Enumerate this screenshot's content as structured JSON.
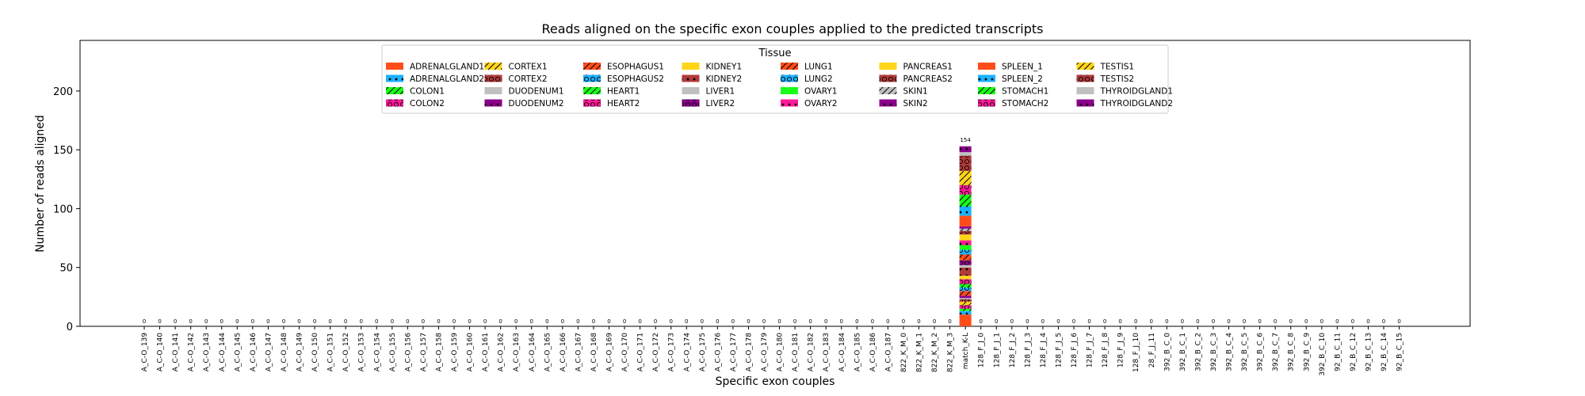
{
  "chart_data": {
    "type": "bar",
    "stacked": true,
    "title": "Reads aligned on the specific exon couples applied to the predicted transcripts",
    "xlabel": "Specific exon couples",
    "ylabel": "Number of reads aligned",
    "ylim": [
      0,
      243
    ],
    "yticks": [
      0,
      50,
      100,
      150,
      200
    ],
    "grid": false,
    "legend": {
      "title": "Tissue",
      "placement": "top-center",
      "columns": 9,
      "entries": [
        {
          "name": "ADRENALGLAND1",
          "color": "#ff4d1a",
          "hatch": "none"
        },
        {
          "name": "ADRENALGLAND2",
          "color": "#1ab2ff",
          "hatch": "dot"
        },
        {
          "name": "COLON1",
          "color": "#1aff1a",
          "hatch": "slash"
        },
        {
          "name": "COLON2",
          "color": "#ff1a99",
          "hatch": "circle"
        },
        {
          "name": "CORTEX1",
          "color": "#ffd51a",
          "hatch": "slash"
        },
        {
          "name": "CORTEX2",
          "color": "#b03a3a",
          "hatch": "circle"
        },
        {
          "name": "DUODENUM1",
          "color": "#c0c0c0",
          "hatch": "none"
        },
        {
          "name": "DUODENUM2",
          "color": "#8b008b",
          "hatch": "dot"
        },
        {
          "name": "ESOPHAGUS1",
          "color": "#ff4d1a",
          "hatch": "slash"
        },
        {
          "name": "ESOPHAGUS2",
          "color": "#1ab2ff",
          "hatch": "circle"
        },
        {
          "name": "HEART1",
          "color": "#1aff1a",
          "hatch": "slash"
        },
        {
          "name": "HEART2",
          "color": "#ff1a99",
          "hatch": "circle"
        },
        {
          "name": "KIDNEY1",
          "color": "#ffd51a",
          "hatch": "none"
        },
        {
          "name": "KIDNEY2",
          "color": "#b03a3a",
          "hatch": "dot"
        },
        {
          "name": "LIVER1",
          "color": "#c0c0c0",
          "hatch": "none"
        },
        {
          "name": "LIVER2",
          "color": "#8b008b",
          "hatch": "circle"
        },
        {
          "name": "LUNG1",
          "color": "#ff4d1a",
          "hatch": "slash"
        },
        {
          "name": "LUNG2",
          "color": "#1ab2ff",
          "hatch": "circle"
        },
        {
          "name": "OVARY1",
          "color": "#1aff1a",
          "hatch": "none"
        },
        {
          "name": "OVARY2",
          "color": "#ff1a99",
          "hatch": "dot"
        },
        {
          "name": "PANCREAS1",
          "color": "#ffd51a",
          "hatch": "none"
        },
        {
          "name": "PANCREAS2",
          "color": "#b03a3a",
          "hatch": "circle"
        },
        {
          "name": "SKIN1",
          "color": "#c0c0c0",
          "hatch": "slash"
        },
        {
          "name": "SKIN2",
          "color": "#8b008b",
          "hatch": "dot"
        },
        {
          "name": "SPLEEN_1",
          "color": "#ff4d1a",
          "hatch": "none"
        },
        {
          "name": "SPLEEN_2",
          "color": "#1ab2ff",
          "hatch": "dot"
        },
        {
          "name": "STOMACH1",
          "color": "#1aff1a",
          "hatch": "slash"
        },
        {
          "name": "STOMACH2",
          "color": "#ff1a99",
          "hatch": "circle"
        },
        {
          "name": "TESTIS1",
          "color": "#ffd51a",
          "hatch": "slash"
        },
        {
          "name": "TESTIS2",
          "color": "#b03a3a",
          "hatch": "circle"
        },
        {
          "name": "THYROIDGLAND1",
          "color": "#c0c0c0",
          "hatch": "none"
        },
        {
          "name": "THYROIDGLAND2",
          "color": "#8b008b",
          "hatch": "dot"
        }
      ]
    },
    "categories": [
      "A_C-O_139",
      "A_C-O_140",
      "A_C-O_141",
      "A_C-O_142",
      "A_C-O_143",
      "A_C-O_144",
      "A_C-O_145",
      "A_C-O_146",
      "A_C-O_147",
      "A_C-O_148",
      "A_C-O_149",
      "A_C-O_150",
      "A_C-O_151",
      "A_C-O_152",
      "A_C-O_153",
      "A_C-O_154",
      "A_C-O_155",
      "A_C-O_156",
      "A_C-O_157",
      "A_C-O_158",
      "A_C-O_159",
      "A_C-O_160",
      "A_C-O_161",
      "A_C-O_162",
      "A_C-O_163",
      "A_C-O_164",
      "A_C-O_165",
      "A_C-O_166",
      "A_C-O_167",
      "A_C-O_168",
      "A_C-O_169",
      "A_C-O_170",
      "A_C-O_171",
      "A_C-O_172",
      "A_C-O_173",
      "A_C-O_174",
      "A_C-O_175",
      "A_C-O_176",
      "A_C-O_177",
      "A_C-O_178",
      "A_C-O_179",
      "A_C-O_180",
      "A_C-O_181",
      "A_C-O_182",
      "A_C-O_183",
      "A_C-O_184",
      "A_C-O_185",
      "A_C-O_186",
      "A_C-O_187",
      "822_K_M_0",
      "822_K_M_1",
      "822_K_M_2",
      "822_K_M_3",
      "match_K-L",
      "128_F_J_0",
      "128_F_J_1",
      "128_F_J_2",
      "128_F_J_3",
      "128_F_J_4",
      "128_F_J_5",
      "128_F_J_6",
      "128_F_J_7",
      "128_F_J_8",
      "128_F_J_9",
      "128_F_J_10",
      "28_F_J_11",
      "392_B_C_0",
      "392_B_C_1",
      "392_B_C_2",
      "392_B_C_3",
      "392_B_C_4",
      "392_B_C_5",
      "392_B_C_6",
      "392_B_C_7",
      "392_B_C_8",
      "392_B_C_9",
      "392_B_C_10",
      "92_B_C_11",
      "92_B_C_12",
      "92_B_C_13",
      "92_B_C_14",
      "92_B_C_15"
    ],
    "totals": [
      0,
      0,
      0,
      0,
      0,
      0,
      0,
      0,
      0,
      0,
      0,
      0,
      0,
      0,
      0,
      0,
      0,
      0,
      0,
      0,
      0,
      0,
      0,
      0,
      0,
      0,
      0,
      0,
      0,
      0,
      0,
      0,
      0,
      0,
      0,
      0,
      0,
      0,
      0,
      0,
      0,
      0,
      0,
      0,
      0,
      0,
      0,
      0,
      0,
      0,
      0,
      0,
      0,
      154,
      0,
      0,
      0,
      0,
      0,
      0,
      0,
      0,
      0,
      0,
      0,
      0,
      0,
      0,
      0,
      0,
      0,
      0,
      0,
      0,
      0,
      0,
      0,
      0,
      0,
      0,
      0,
      0
    ],
    "total_labels": [
      "0",
      "0",
      "0",
      "0",
      "0",
      "0",
      "0",
      "0",
      "0",
      "0",
      "0",
      "0",
      "0",
      "0",
      "0",
      "0",
      "0",
      "0",
      "0",
      "0",
      "0",
      "0",
      "0",
      "0",
      "0",
      "0",
      "0",
      "0",
      "0",
      "0",
      "0",
      "0",
      "0",
      "0",
      "0",
      "0",
      "0",
      "0",
      "0",
      "0",
      "0",
      "0",
      "0",
      "0",
      "0",
      "0",
      "0",
      "0",
      "0",
      "0",
      "0",
      "0",
      "0",
      "154",
      "0",
      "0",
      "0",
      "0",
      "0",
      "0",
      "0",
      "0",
      "0",
      "0",
      "0",
      "0",
      "0",
      "0",
      "0",
      "0",
      "0",
      "0",
      "0",
      "0",
      "0",
      "0",
      "0",
      "0",
      "0",
      "0",
      "0",
      "0"
    ],
    "stack_category": "match_K-L",
    "stack_values": [
      10,
      3,
      2,
      3,
      3,
      2,
      1,
      2,
      4,
      3,
      3,
      4,
      3,
      7,
      2,
      4,
      5,
      4,
      4,
      4,
      5,
      3,
      2,
      2,
      9,
      8,
      10,
      8,
      12,
      13,
      3,
      5
    ]
  }
}
